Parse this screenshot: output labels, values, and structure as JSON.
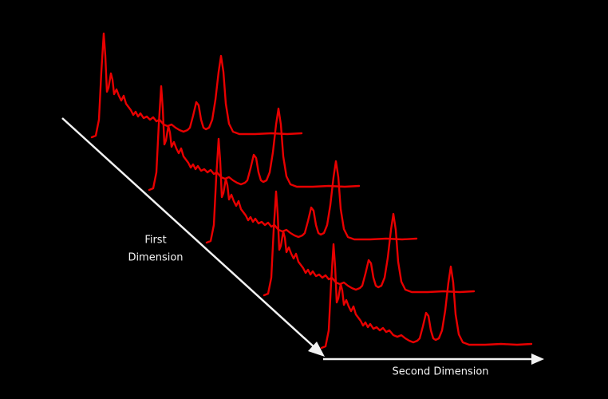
{
  "labels": {
    "first_axis": {
      "lines": [
        "First",
        "Dimension"
      ]
    },
    "second_axis": "Second Dimension"
  }
}
